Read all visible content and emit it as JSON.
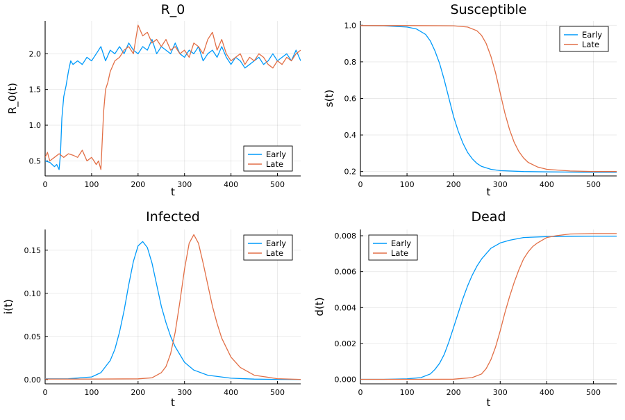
{
  "colors": {
    "Early": "#009AFA",
    "Late": "#E26F46"
  },
  "chart_data": [
    {
      "type": "line",
      "title": "R_0",
      "xlabel": "t",
      "ylabel": "R_0(t)",
      "xlim": [
        0,
        550
      ],
      "ylim": [
        0.29,
        2.46
      ],
      "xticks": [
        0,
        100,
        200,
        300,
        400,
        500
      ],
      "xtick_labels": [
        "0",
        "100",
        "200",
        "300",
        "400",
        "500"
      ],
      "yticks": [
        0.5,
        1.0,
        1.5,
        2.0
      ],
      "ytick_labels": [
        "0.5",
        "1.0",
        "1.5",
        "2.0"
      ],
      "grid": true,
      "legend": "bottom-right",
      "series": [
        {
          "name": "Early",
          "color": "#009AFA",
          "x": [
            0,
            10,
            20,
            25,
            30,
            33,
            36,
            40,
            45,
            50,
            55,
            60,
            70,
            80,
            90,
            100,
            110,
            120,
            130,
            140,
            150,
            160,
            170,
            180,
            190,
            200,
            210,
            220,
            230,
            240,
            250,
            260,
            270,
            280,
            290,
            300,
            310,
            320,
            330,
            340,
            350,
            360,
            370,
            380,
            390,
            400,
            410,
            420,
            430,
            440,
            450,
            460,
            470,
            480,
            490,
            500,
            510,
            520,
            530,
            540,
            550
          ],
          "y": [
            0.5,
            0.48,
            0.42,
            0.45,
            0.38,
            0.6,
            1.1,
            1.4,
            1.55,
            1.75,
            1.9,
            1.85,
            1.9,
            1.85,
            1.95,
            1.9,
            2.0,
            2.1,
            1.9,
            2.05,
            2.0,
            2.1,
            2.0,
            2.15,
            2.05,
            2.0,
            2.1,
            2.05,
            2.2,
            2.0,
            2.1,
            2.05,
            2.0,
            2.15,
            2.0,
            1.95,
            2.05,
            2.0,
            2.1,
            1.9,
            2.0,
            2.05,
            1.95,
            2.1,
            1.95,
            1.85,
            1.95,
            1.9,
            1.8,
            1.85,
            1.9,
            1.95,
            1.85,
            1.9,
            2.0,
            1.9,
            1.95,
            2.0,
            1.9,
            2.05,
            1.9
          ]
        },
        {
          "name": "Late",
          "color": "#E26F46",
          "x": [
            0,
            5,
            10,
            20,
            30,
            40,
            50,
            60,
            70,
            80,
            90,
            100,
            105,
            110,
            115,
            120,
            123,
            126,
            130,
            135,
            140,
            150,
            160,
            170,
            180,
            190,
            200,
            210,
            220,
            230,
            240,
            250,
            260,
            270,
            280,
            290,
            300,
            310,
            320,
            330,
            340,
            350,
            360,
            370,
            380,
            390,
            400,
            410,
            420,
            430,
            440,
            450,
            460,
            470,
            480,
            490,
            500,
            510,
            520,
            530,
            540,
            550
          ],
          "y": [
            0.55,
            0.62,
            0.5,
            0.55,
            0.6,
            0.55,
            0.6,
            0.58,
            0.55,
            0.65,
            0.5,
            0.55,
            0.5,
            0.45,
            0.5,
            0.38,
            0.8,
            1.2,
            1.5,
            1.6,
            1.75,
            1.9,
            1.95,
            2.05,
            2.1,
            2.0,
            2.4,
            2.25,
            2.3,
            2.15,
            2.2,
            2.1,
            2.2,
            2.05,
            2.1,
            2.0,
            2.05,
            1.95,
            2.15,
            2.1,
            2.0,
            2.2,
            2.3,
            2.05,
            2.2,
            2.0,
            1.9,
            1.95,
            2.0,
            1.85,
            1.95,
            1.9,
            2.0,
            1.95,
            1.85,
            1.8,
            1.9,
            1.85,
            1.95,
            1.9,
            2.0,
            2.05
          ]
        }
      ]
    },
    {
      "type": "line",
      "title": "Susceptible",
      "xlabel": "t",
      "ylabel": "s(t)",
      "xlim": [
        0,
        550
      ],
      "ylim": [
        0.176,
        1.024
      ],
      "xticks": [
        0,
        100,
        200,
        300,
        400,
        500
      ],
      "xtick_labels": [
        "0",
        "100",
        "200",
        "300",
        "400",
        "500"
      ],
      "yticks": [
        0.2,
        0.4,
        0.6,
        0.8,
        1.0
      ],
      "ytick_labels": [
        "0.2",
        "0.4",
        "0.6",
        "0.8",
        "1.0"
      ],
      "grid": true,
      "legend": "top-right",
      "series": [
        {
          "name": "Early",
          "color": "#009AFA",
          "x": [
            0,
            50,
            100,
            120,
            140,
            150,
            160,
            170,
            180,
            190,
            200,
            210,
            220,
            230,
            240,
            250,
            260,
            280,
            300,
            350,
            400,
            450,
            500,
            550
          ],
          "y": [
            0.998,
            0.997,
            0.99,
            0.98,
            0.95,
            0.915,
            0.86,
            0.79,
            0.7,
            0.6,
            0.5,
            0.42,
            0.355,
            0.305,
            0.27,
            0.245,
            0.228,
            0.212,
            0.205,
            0.2,
            0.198,
            0.197,
            0.196,
            0.196
          ]
        },
        {
          "name": "Late",
          "color": "#E26F46",
          "x": [
            0,
            100,
            200,
            230,
            250,
            260,
            270,
            280,
            290,
            300,
            310,
            320,
            330,
            340,
            350,
            360,
            380,
            400,
            450,
            500,
            550
          ],
          "y": [
            0.998,
            0.998,
            0.997,
            0.99,
            0.97,
            0.945,
            0.9,
            0.83,
            0.74,
            0.63,
            0.52,
            0.43,
            0.36,
            0.31,
            0.275,
            0.25,
            0.225,
            0.212,
            0.203,
            0.2,
            0.2
          ]
        }
      ]
    },
    {
      "type": "line",
      "title": "Infected",
      "xlabel": "t",
      "ylabel": "i(t)",
      "xlim": [
        0,
        550
      ],
      "ylim": [
        -0.005,
        0.174
      ],
      "xticks": [
        0,
        100,
        200,
        300,
        400,
        500
      ],
      "xtick_labels": [
        "0",
        "100",
        "200",
        "300",
        "400",
        "500"
      ],
      "yticks": [
        0.0,
        0.05,
        0.1,
        0.15
      ],
      "ytick_labels": [
        "0.00",
        "0.05",
        "0.10",
        "0.15"
      ],
      "grid": true,
      "legend": "top-right",
      "series": [
        {
          "name": "Early",
          "color": "#009AFA",
          "x": [
            0,
            50,
            100,
            120,
            140,
            150,
            160,
            170,
            180,
            190,
            200,
            210,
            220,
            230,
            240,
            250,
            260,
            270,
            280,
            300,
            320,
            350,
            400,
            450,
            500,
            550
          ],
          "y": [
            0.0008,
            0.0009,
            0.003,
            0.008,
            0.022,
            0.035,
            0.055,
            0.08,
            0.11,
            0.137,
            0.155,
            0.16,
            0.153,
            0.135,
            0.11,
            0.085,
            0.066,
            0.05,
            0.038,
            0.02,
            0.011,
            0.005,
            0.0015,
            0.0005,
            0.0002,
            0.0001
          ]
        },
        {
          "name": "Late",
          "color": "#E26F46",
          "x": [
            0,
            100,
            200,
            230,
            250,
            260,
            270,
            280,
            290,
            300,
            310,
            320,
            330,
            340,
            350,
            360,
            370,
            380,
            400,
            420,
            450,
            500,
            550
          ],
          "y": [
            0.0006,
            0.0006,
            0.0008,
            0.002,
            0.008,
            0.015,
            0.03,
            0.055,
            0.09,
            0.128,
            0.158,
            0.168,
            0.158,
            0.135,
            0.11,
            0.085,
            0.065,
            0.048,
            0.026,
            0.014,
            0.005,
            0.001,
            0.0002
          ]
        }
      ]
    },
    {
      "type": "line",
      "title": "Dead",
      "xlabel": "t",
      "ylabel": "d(t)",
      "xlim": [
        0,
        550
      ],
      "ylim": [
        -0.00025,
        0.00835
      ],
      "xticks": [
        0,
        100,
        200,
        300,
        400,
        500
      ],
      "xtick_labels": [
        "0",
        "100",
        "200",
        "300",
        "400",
        "500"
      ],
      "yticks": [
        0.0,
        0.002,
        0.004,
        0.006,
        0.008
      ],
      "ytick_labels": [
        "0.000",
        "0.002",
        "0.004",
        "0.006",
        "0.008"
      ],
      "grid": true,
      "legend": "top-left",
      "series": [
        {
          "name": "Early",
          "color": "#009AFA",
          "x": [
            0,
            50,
            100,
            130,
            150,
            160,
            170,
            180,
            190,
            200,
            210,
            220,
            230,
            240,
            250,
            260,
            270,
            280,
            300,
            320,
            350,
            400,
            450,
            500,
            550
          ],
          "y": [
            0.0,
            0.0,
            3e-05,
            0.0001,
            0.0003,
            0.00055,
            0.0009,
            0.0014,
            0.0021,
            0.0029,
            0.0037,
            0.0045,
            0.0052,
            0.0058,
            0.0063,
            0.0067,
            0.007,
            0.0073,
            0.0076,
            0.00775,
            0.0079,
            0.00795,
            0.00797,
            0.00798,
            0.00798
          ]
        },
        {
          "name": "Late",
          "color": "#E26F46",
          "x": [
            0,
            100,
            200,
            240,
            260,
            270,
            280,
            290,
            300,
            310,
            320,
            330,
            340,
            350,
            360,
            370,
            380,
            400,
            420,
            450,
            500,
            550
          ],
          "y": [
            0.0,
            0.0,
            1e-05,
            0.0001,
            0.0003,
            0.0006,
            0.0011,
            0.0018,
            0.0027,
            0.0037,
            0.0046,
            0.0054,
            0.0061,
            0.0067,
            0.0071,
            0.0074,
            0.0076,
            0.0079,
            0.008,
            0.0081,
            0.00812,
            0.00812
          ]
        }
      ]
    }
  ]
}
